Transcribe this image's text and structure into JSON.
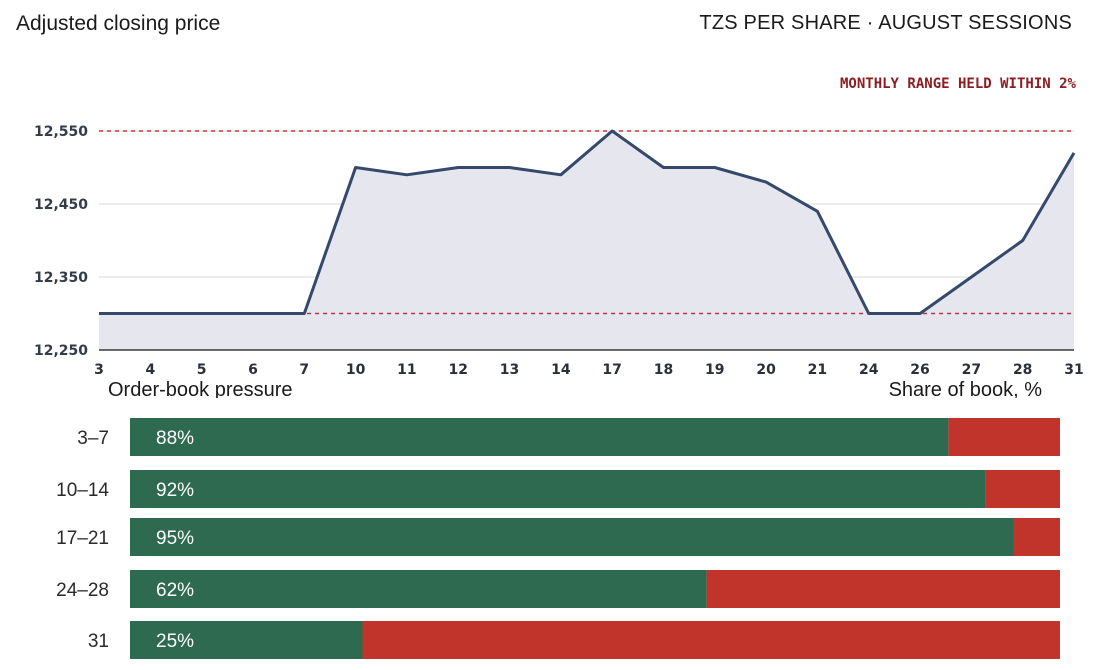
{
  "header": {
    "title": "Adjusted closing price",
    "subtitle": "TZS PER SHARE · AUGUST SESSIONS"
  },
  "annotation": "MONTHLY RANGE HELD WITHIN 2%",
  "bar_panel": {
    "title": "Order-book pressure",
    "unit_label": "Share of book, %"
  },
  "colors": {
    "line": "#34496b",
    "area": "#e6e7ee",
    "reference_lines": "#c0393b",
    "annotation": "#8b1e22",
    "buy_share": "#2e6a4f",
    "sell_share": "#c0342c"
  },
  "chart_data": [
    {
      "type": "line",
      "title": "Adjusted closing price",
      "subtitle": "TZS PER SHARE · AUGUST SESSIONS",
      "x": [
        "3",
        "4",
        "5",
        "6",
        "7",
        "10",
        "11",
        "12",
        "13",
        "14",
        "17",
        "18",
        "19",
        "20",
        "21",
        "24",
        "26",
        "27",
        "28",
        "31"
      ],
      "values": [
        12300,
        12300,
        12300,
        12300,
        12300,
        12500,
        12490,
        12500,
        12500,
        12490,
        12550,
        12500,
        12500,
        12480,
        12440,
        12300,
        12300,
        12350,
        12400,
        12520
      ],
      "ylim": [
        12250,
        12550
      ],
      "yticks": [
        12250,
        12350,
        12450,
        12550
      ],
      "ytick_labels": [
        "12,250",
        "12,350",
        "12,450",
        "12,550"
      ],
      "reference_lines": [
        12550,
        12300
      ],
      "area_fill": true,
      "grid": "horizontal",
      "annotation": "MONTHLY RANGE HELD WITHIN 2%"
    },
    {
      "type": "bar",
      "orientation": "horizontal",
      "stacked": true,
      "title": "Order-book pressure",
      "unit": "Share of book, %",
      "categories": [
        "3–7",
        "10–14",
        "17–21",
        "24–28",
        "31"
      ],
      "values": [
        88,
        92,
        95,
        62,
        25
      ],
      "value_labels": [
        "88%",
        "92%",
        "95%",
        "62%",
        "25%"
      ],
      "xlim": [
        0,
        100
      ]
    }
  ]
}
